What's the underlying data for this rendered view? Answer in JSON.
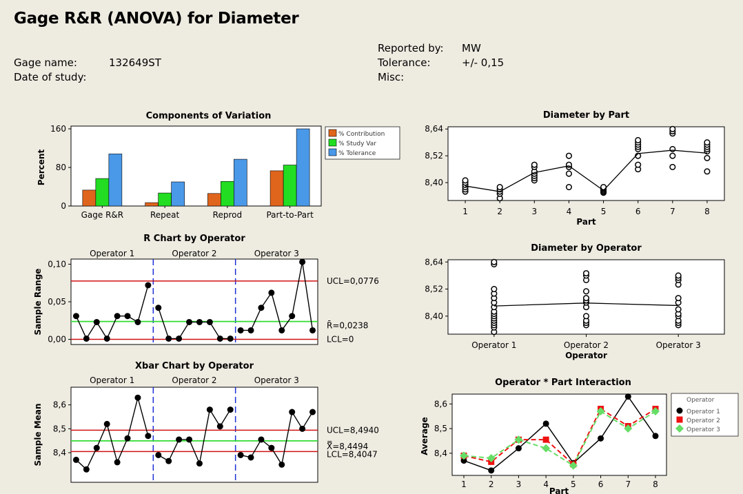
{
  "header": {
    "title": "Gage R&R (ANOVA) for Diameter",
    "gage_name_label": "Gage name:",
    "gage_name_value": "132649ST",
    "date_label": "Date of study:",
    "reported_by_label": "Reported by:",
    "reported_by_value": "MW",
    "tolerance_label": "Tolerance:",
    "tolerance_value": "+/- 0,15",
    "misc_label": "Misc:"
  },
  "chart_data": [
    {
      "id": "components",
      "type": "bar",
      "title": "Components of Variation",
      "ylabel": "Percent",
      "ylim": [
        0,
        160
      ],
      "yticks": [
        "0",
        "80",
        "160"
      ],
      "categories": [
        "Gage R&R",
        "Repeat",
        "Reprod",
        "Part-to-Part"
      ],
      "series": [
        {
          "name": "% Contribution",
          "color": "#e0651c",
          "values": [
            33,
            7,
            26,
            73
          ]
        },
        {
          "name": "% Study Var",
          "color": "#22dd22",
          "values": [
            57,
            27,
            51,
            85
          ]
        },
        {
          "name": "% Tolerance",
          "color": "#4a98e8",
          "values": [
            108,
            50,
            97,
            160
          ]
        }
      ],
      "legend": "right"
    },
    {
      "id": "rchart",
      "type": "line",
      "title": "R Chart by Operator",
      "ylabel": "Sample Range",
      "ylim": [
        0,
        0.1
      ],
      "yticks": [
        "0,00",
        "0,05",
        "0,10"
      ],
      "groups": [
        "Operator 1",
        "Operator 2",
        "Operator 3"
      ],
      "values": [
        0.031,
        0.001,
        0.023,
        0.001,
        0.031,
        0.031,
        0.023,
        0.072,
        0.042,
        0.001,
        0.001,
        0.023,
        0.023,
        0.023,
        0.001,
        0.001,
        0.012,
        0.012,
        0.042,
        0.062,
        0.012,
        0.031,
        0.103,
        0.012
      ],
      "ucl": 0.0776,
      "center": 0.0238,
      "lcl": 0,
      "ucl_label": "UCL=0,0776",
      "center_label": "R̄=0,0238",
      "lcl_label": "LCL=0"
    },
    {
      "id": "xbar",
      "type": "line",
      "title": "Xbar Chart by Operator",
      "ylabel": "Sample Mean",
      "ylim": [
        8.3,
        8.65
      ],
      "yticks": [
        "8,4",
        "8,5",
        "8,6"
      ],
      "groups": [
        "Operator 1",
        "Operator 2",
        "Operator 3"
      ],
      "values": [
        8.37,
        8.33,
        8.42,
        8.52,
        8.36,
        8.46,
        8.63,
        8.47,
        8.39,
        8.365,
        8.455,
        8.455,
        8.355,
        8.58,
        8.51,
        8.58,
        8.39,
        8.38,
        8.455,
        8.42,
        8.35,
        8.57,
        8.5,
        8.57
      ],
      "ucl": 8.494,
      "center": 8.4494,
      "lcl": 8.4047,
      "ucl_label": "UCL=8,4940",
      "center_label": "X̿=8,4494",
      "lcl_label": "LCL=8,4047"
    },
    {
      "id": "bypart",
      "type": "scatter",
      "title": "Diameter by Part",
      "xlabel": "Part",
      "ylim": [
        8.32,
        8.65
      ],
      "yticks": [
        "8,40",
        "8,52",
        "8,64"
      ],
      "categories": [
        "1",
        "2",
        "3",
        "4",
        "5",
        "6",
        "7",
        "8"
      ],
      "points": [
        [
          8.36,
          8.37,
          8.38,
          8.39,
          8.4,
          8.41
        ],
        [
          8.33,
          8.35,
          8.36,
          8.37,
          8.38
        ],
        [
          8.41,
          8.42,
          8.43,
          8.44,
          8.45,
          8.47,
          8.48
        ],
        [
          8.38,
          8.44,
          8.47,
          8.48,
          8.52
        ],
        [
          8.355,
          8.36,
          8.365,
          8.37,
          8.375,
          8.38
        ],
        [
          8.46,
          8.48,
          8.52,
          8.55,
          8.56,
          8.57,
          8.58,
          8.59
        ],
        [
          8.47,
          8.52,
          8.55,
          8.62,
          8.63,
          8.64
        ],
        [
          8.45,
          8.51,
          8.54,
          8.55,
          8.56,
          8.57,
          8.58
        ]
      ],
      "means": [
        8.385,
        8.36,
        8.445,
        8.475,
        8.365,
        8.53,
        8.545,
        8.532
      ]
    },
    {
      "id": "byoperator",
      "type": "scatter",
      "title": "Diameter by Operator",
      "xlabel": "Operator",
      "ylim": [
        8.32,
        8.65
      ],
      "yticks": [
        "8,40",
        "8,52",
        "8,64"
      ],
      "categories": [
        "Operator 1",
        "Operator 2",
        "Operator 3"
      ],
      "points": [
        [
          8.33,
          8.35,
          8.36,
          8.37,
          8.38,
          8.39,
          8.4,
          8.41,
          8.42,
          8.44,
          8.46,
          8.48,
          8.5,
          8.52,
          8.63,
          8.64
        ],
        [
          8.36,
          8.37,
          8.38,
          8.4,
          8.44,
          8.46,
          8.47,
          8.48,
          8.51,
          8.56,
          8.58,
          8.59
        ],
        [
          8.36,
          8.37,
          8.38,
          8.4,
          8.41,
          8.43,
          8.46,
          8.48,
          8.54,
          8.56,
          8.57,
          8.58
        ]
      ],
      "means": [
        8.445,
        8.458,
        8.447
      ]
    },
    {
      "id": "interaction",
      "type": "line",
      "title": "Operator * Part Interaction",
      "xlabel": "Part",
      "ylabel": "Average",
      "ylim": [
        8.31,
        8.64
      ],
      "yticks": [
        "8,4",
        "8,5",
        "8,6"
      ],
      "categories": [
        "1",
        "2",
        "3",
        "4",
        "5",
        "6",
        "7",
        "8"
      ],
      "legend_title": "Operator",
      "series": [
        {
          "name": "Operator 1",
          "color": "#000000",
          "marker": "circle",
          "dash": false,
          "values": [
            8.37,
            8.33,
            8.42,
            8.52,
            8.36,
            8.46,
            8.63,
            8.47
          ]
        },
        {
          "name": "Operator 2",
          "color": "#ee1111",
          "marker": "square",
          "dash": true,
          "values": [
            8.39,
            8.365,
            8.455,
            8.455,
            8.355,
            8.58,
            8.51,
            8.58
          ]
        },
        {
          "name": "Operator 3",
          "color": "#66dd66",
          "marker": "diamond",
          "dash": true,
          "values": [
            8.39,
            8.38,
            8.455,
            8.42,
            8.35,
            8.57,
            8.5,
            8.57
          ]
        }
      ]
    }
  ]
}
